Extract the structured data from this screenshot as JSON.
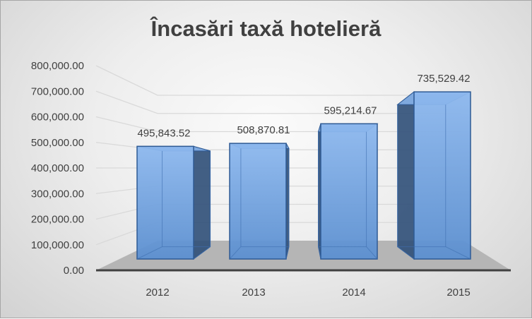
{
  "chart_data": {
    "type": "bar",
    "title": "Încasări taxă hotelieră",
    "categories": [
      "2012",
      "2013",
      "2014",
      "2015"
    ],
    "values": [
      495843.52,
      508870.81,
      595214.67,
      735529.42
    ],
    "data_labels": [
      "495,843.52",
      "508,870.81",
      "595,214.67",
      "735,529.42"
    ],
    "ylim": [
      0,
      800000
    ],
    "y_ticks": [
      "0.00",
      "100,000.00",
      "200,000.00",
      "300,000.00",
      "400,000.00",
      "500,000.00",
      "600,000.00",
      "700,000.00",
      "800,000.00"
    ],
    "grid": true,
    "legend": "none",
    "style": "3d-perspective",
    "colors": {
      "bar": "#5b8fd0",
      "bar_dark": "#2f4f78",
      "floor": "#b5b5b5",
      "axis": "#404040"
    }
  }
}
